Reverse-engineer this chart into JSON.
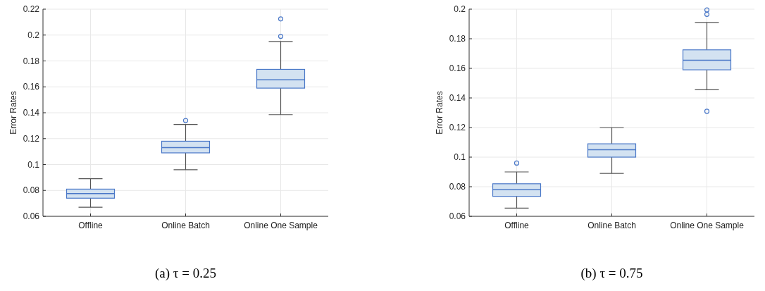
{
  "chart_data": [
    {
      "type": "box",
      "title": "(a) τ = 0.25",
      "ylabel": "Error Rates",
      "categories": [
        "Offline",
        "Online Batch",
        "Online One Sample"
      ],
      "ylim": [
        0.06,
        0.22
      ],
      "yticks": [
        0.06,
        0.08,
        0.1,
        0.12,
        0.14,
        0.16,
        0.18,
        0.2,
        0.22
      ],
      "grid": true,
      "color": "#4a78c8",
      "boxes": [
        {
          "low": 0.067,
          "q1": 0.074,
          "median": 0.0775,
          "q3": 0.081,
          "high": 0.089
        },
        {
          "low": 0.096,
          "q1": 0.109,
          "median": 0.113,
          "q3": 0.118,
          "high": 0.131,
          "outliers": [
            0.134
          ]
        },
        {
          "low": 0.1385,
          "q1": 0.159,
          "median": 0.1655,
          "q3": 0.1735,
          "high": 0.195,
          "outliers": [
            0.199,
            0.2125
          ]
        }
      ]
    },
    {
      "type": "box",
      "title": "(b) τ = 0.75",
      "ylabel": "Error Rates",
      "categories": [
        "Offline",
        "Online Batch",
        "Online One Sample"
      ],
      "ylim": [
        0.06,
        0.2
      ],
      "yticks": [
        0.06,
        0.08,
        0.1,
        0.12,
        0.14,
        0.16,
        0.18,
        0.2
      ],
      "grid": true,
      "color": "#4a78c8",
      "boxes": [
        {
          "low": 0.0655,
          "q1": 0.0735,
          "median": 0.078,
          "q3": 0.082,
          "high": 0.09,
          "outliers": [
            0.096
          ]
        },
        {
          "low": 0.089,
          "q1": 0.1,
          "median": 0.105,
          "q3": 0.109,
          "high": 0.12
        },
        {
          "low": 0.1455,
          "q1": 0.159,
          "median": 0.1655,
          "q3": 0.1725,
          "high": 0.191,
          "outliers": [
            0.131,
            0.1965,
            0.1995
          ]
        }
      ]
    }
  ]
}
